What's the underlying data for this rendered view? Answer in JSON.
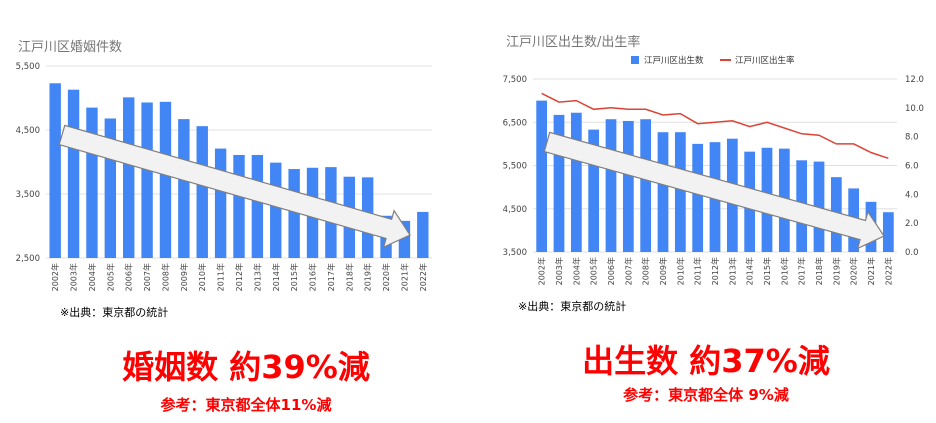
{
  "left": {
    "title": "江戸川区婚姻件数",
    "source": "※出典：東京都の統計",
    "headline": "婚姻数 約39%減",
    "subline": "参考：東京都全体11%減"
  },
  "right": {
    "title": "江戸川区出生数/出生率",
    "source": "※出典：東京都の統計",
    "headline": "出生数 約37%減",
    "subline": "参考：東京都全体 9%減"
  },
  "colors": {
    "bar": "#4285f4",
    "line": "#db4437",
    "grid": "#e0e0e0",
    "emphasis": "#ff0000",
    "arrow_fill": "#f2f2f2",
    "arrow_stroke": "#7f7f7f"
  },
  "chart_data": [
    {
      "type": "bar",
      "title": "江戸川区婚姻件数",
      "categories": [
        "2002年",
        "2003年",
        "2004年",
        "2005年",
        "2006年",
        "2007年",
        "2008年",
        "2009年",
        "2010年",
        "2011年",
        "2012年",
        "2013年",
        "2014年",
        "2015年",
        "2016年",
        "2017年",
        "2018年",
        "2019年",
        "2020年",
        "2021年",
        "2022年"
      ],
      "values": [
        5230,
        5130,
        4850,
        4680,
        5010,
        4930,
        4940,
        4670,
        4560,
        4210,
        4110,
        4110,
        3990,
        3890,
        3910,
        3920,
        3770,
        3760,
        3160,
        3080,
        3220
      ],
      "ylim": [
        2500,
        5500
      ],
      "yticks": [
        "2,500",
        "3,500",
        "4,500",
        "5,500"
      ],
      "grid": true,
      "annotation": "downward-arrow"
    },
    {
      "type": "bar+line",
      "title": "江戸川区出生数/出生率",
      "categories": [
        "2002年",
        "2003年",
        "2004年",
        "2005年",
        "2006年",
        "2007年",
        "2008年",
        "2009年",
        "2010年",
        "2011年",
        "2012年",
        "2013年",
        "2014年",
        "2015年",
        "2016年",
        "2017年",
        "2018年",
        "2019年",
        "2020年",
        "2021年",
        "2022年"
      ],
      "series": [
        {
          "name": "江戸川区出生数",
          "type": "bar",
          "axis": "left",
          "values": [
            7000,
            6670,
            6720,
            6330,
            6570,
            6530,
            6570,
            6270,
            6270,
            6000,
            6040,
            6120,
            5820,
            5910,
            5890,
            5620,
            5590,
            5230,
            4970,
            4660,
            4420
          ]
        },
        {
          "name": "江戸川区出生率",
          "type": "line",
          "axis": "right",
          "values": [
            11.0,
            10.4,
            10.5,
            9.9,
            10.0,
            9.9,
            9.9,
            9.5,
            9.6,
            8.9,
            9.0,
            9.1,
            8.7,
            9.0,
            8.6,
            8.2,
            8.1,
            7.5,
            7.5,
            6.9,
            6.5
          ]
        }
      ],
      "ylim": [
        3500,
        7500
      ],
      "yticks": [
        "3,500",
        "4,500",
        "5,500",
        "6,500",
        "7,500"
      ],
      "y2lim": [
        0,
        12
      ],
      "y2ticks": [
        "0.0",
        "2.0",
        "4.0",
        "6.0",
        "8.0",
        "10.0",
        "12.0"
      ],
      "legend": "top",
      "grid": true,
      "annotation": "downward-arrow"
    }
  ]
}
